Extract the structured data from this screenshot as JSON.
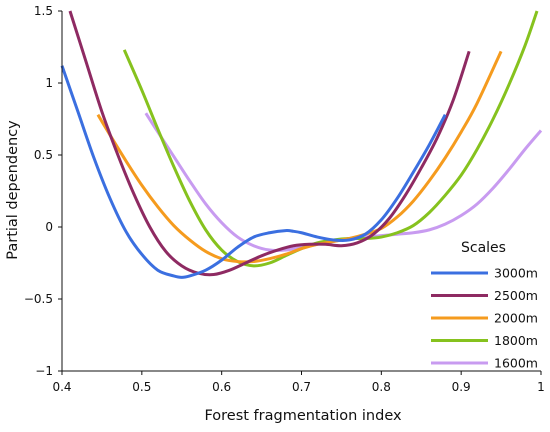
{
  "chart_data": {
    "type": "line",
    "xlabel": "Forest fragmentation index",
    "ylabel": "Partial dependency",
    "xlim": [
      0.4,
      1.0
    ],
    "ylim": [
      -1.0,
      1.5
    ],
    "xticks": [
      "0.4",
      "0.5",
      "0.6",
      "0.7",
      "0.8",
      "0.9",
      "1"
    ],
    "yticks": [
      "1.5",
      "1",
      "0.5",
      "0",
      "−0.5",
      "−1"
    ],
    "legend_title": "Scales",
    "legend_position": "bottom-right",
    "grid": false,
    "series": [
      {
        "name": "3000m",
        "color": "#3b6fe0",
        "x": [
          0.4,
          0.42,
          0.44,
          0.46,
          0.48,
          0.5,
          0.52,
          0.54,
          0.55,
          0.56,
          0.58,
          0.6,
          0.62,
          0.64,
          0.66,
          0.68,
          0.69,
          0.7,
          0.72,
          0.74,
          0.76,
          0.78,
          0.8,
          0.82,
          0.84,
          0.86,
          0.88
        ],
        "y": [
          1.12,
          0.8,
          0.48,
          0.2,
          -0.03,
          -0.19,
          -0.3,
          -0.34,
          -0.35,
          -0.34,
          -0.3,
          -0.23,
          -0.14,
          -0.07,
          -0.04,
          -0.025,
          -0.03,
          -0.04,
          -0.07,
          -0.09,
          -0.09,
          -0.05,
          0.05,
          0.2,
          0.38,
          0.57,
          0.78
        ]
      },
      {
        "name": "2500m",
        "color": "#8e2a62",
        "x": [
          0.41,
          0.43,
          0.45,
          0.47,
          0.49,
          0.51,
          0.53,
          0.55,
          0.57,
          0.59,
          0.61,
          0.63,
          0.65,
          0.67,
          0.69,
          0.71,
          0.73,
          0.75,
          0.77,
          0.79,
          0.81,
          0.83,
          0.85,
          0.87,
          0.89,
          0.91
        ],
        "y": [
          1.5,
          1.15,
          0.8,
          0.5,
          0.23,
          0.0,
          -0.17,
          -0.27,
          -0.32,
          -0.33,
          -0.3,
          -0.25,
          -0.2,
          -0.16,
          -0.13,
          -0.12,
          -0.12,
          -0.13,
          -0.11,
          -0.05,
          0.06,
          0.22,
          0.41,
          0.62,
          0.88,
          1.22
        ]
      },
      {
        "name": "2000m",
        "color": "#f59b1e",
        "x": [
          0.445,
          0.46,
          0.48,
          0.5,
          0.52,
          0.54,
          0.56,
          0.58,
          0.6,
          0.62,
          0.64,
          0.66,
          0.68,
          0.7,
          0.72,
          0.74,
          0.76,
          0.78,
          0.8,
          0.82,
          0.84,
          0.86,
          0.88,
          0.9,
          0.92,
          0.95
        ],
        "y": [
          0.78,
          0.64,
          0.46,
          0.29,
          0.14,
          0.01,
          -0.09,
          -0.17,
          -0.22,
          -0.24,
          -0.24,
          -0.22,
          -0.19,
          -0.15,
          -0.12,
          -0.1,
          -0.08,
          -0.05,
          -0.01,
          0.07,
          0.18,
          0.32,
          0.48,
          0.66,
          0.86,
          1.22
        ]
      },
      {
        "name": "1800m",
        "color": "#86c21e",
        "x": [
          0.478,
          0.5,
          0.52,
          0.54,
          0.56,
          0.58,
          0.6,
          0.62,
          0.64,
          0.66,
          0.68,
          0.7,
          0.72,
          0.74,
          0.76,
          0.78,
          0.8,
          0.82,
          0.84,
          0.86,
          0.88,
          0.9,
          0.92,
          0.94,
          0.96,
          0.98,
          0.995
        ],
        "y": [
          1.23,
          0.95,
          0.68,
          0.42,
          0.18,
          -0.02,
          -0.16,
          -0.24,
          -0.27,
          -0.25,
          -0.2,
          -0.15,
          -0.11,
          -0.09,
          -0.08,
          -0.08,
          -0.07,
          -0.04,
          0.01,
          0.1,
          0.22,
          0.36,
          0.54,
          0.75,
          0.99,
          1.26,
          1.5
        ]
      },
      {
        "name": "1600m",
        "color": "#c89bf0",
        "x": [
          0.505,
          0.52,
          0.54,
          0.56,
          0.58,
          0.6,
          0.62,
          0.64,
          0.66,
          0.68,
          0.7,
          0.72,
          0.74,
          0.76,
          0.78,
          0.8,
          0.82,
          0.84,
          0.86,
          0.88,
          0.9,
          0.92,
          0.94,
          0.96,
          0.98,
          1.0
        ],
        "y": [
          0.79,
          0.66,
          0.49,
          0.32,
          0.16,
          0.03,
          -0.07,
          -0.13,
          -0.16,
          -0.16,
          -0.14,
          -0.12,
          -0.1,
          -0.08,
          -0.07,
          -0.06,
          -0.05,
          -0.04,
          -0.02,
          0.02,
          0.08,
          0.16,
          0.27,
          0.4,
          0.54,
          0.67
        ]
      }
    ]
  }
}
